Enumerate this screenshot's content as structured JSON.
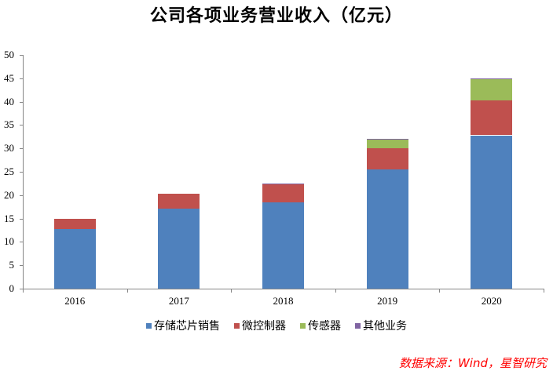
{
  "chart_data": {
    "type": "bar",
    "stacked": true,
    "title": "公司各项业务营业收入（亿元）",
    "xlabel": "",
    "ylabel": "",
    "categories": [
      "2016",
      "2017",
      "2018",
      "2019",
      "2020"
    ],
    "series": [
      {
        "name": "存储芯片销售",
        "color": "#4F81BD",
        "values": [
          12.8,
          17.1,
          18.4,
          25.5,
          32.8
        ]
      },
      {
        "name": "微控制器",
        "color": "#C0504D",
        "values": [
          2.1,
          3.2,
          4.1,
          4.5,
          7.5
        ]
      },
      {
        "name": "传感器",
        "color": "#9BBB59",
        "values": [
          0.0,
          0.0,
          0.0,
          2.0,
          4.6
        ]
      },
      {
        "name": "其他业务",
        "color": "#8064A2",
        "values": [
          0.0,
          0.0,
          0.05,
          0.1,
          0.1
        ]
      }
    ],
    "ylim": [
      0,
      50
    ],
    "yticks": [
      0,
      5,
      10,
      15,
      20,
      25,
      30,
      35,
      40,
      45,
      50
    ],
    "grid": false,
    "legend_position": "bottom"
  },
  "source_note": "数据来源：Wind，星智研究"
}
